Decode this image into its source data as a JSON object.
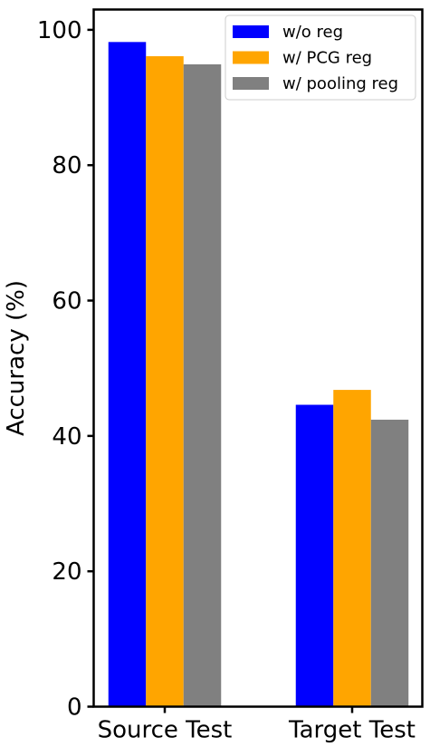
{
  "chart_data": {
    "type": "bar",
    "categories": [
      "Source Test",
      "Target Test"
    ],
    "series": [
      {
        "name": "w/o reg",
        "values": [
          98.2,
          44.6
        ],
        "color": "#0000ff"
      },
      {
        "name": "w/ PCG reg",
        "values": [
          96.1,
          46.8
        ],
        "color": "#ffa500"
      },
      {
        "name": "w/ pooling reg",
        "values": [
          94.9,
          42.4
        ],
        "color": "#808080"
      }
    ],
    "title": "",
    "xlabel": "",
    "ylabel": "Accuracy (%)",
    "ylim": [
      0,
      103
    ],
    "yticks": [
      0,
      20,
      40,
      60,
      80,
      100
    ],
    "grid": false,
    "legend_position": "top-right"
  }
}
